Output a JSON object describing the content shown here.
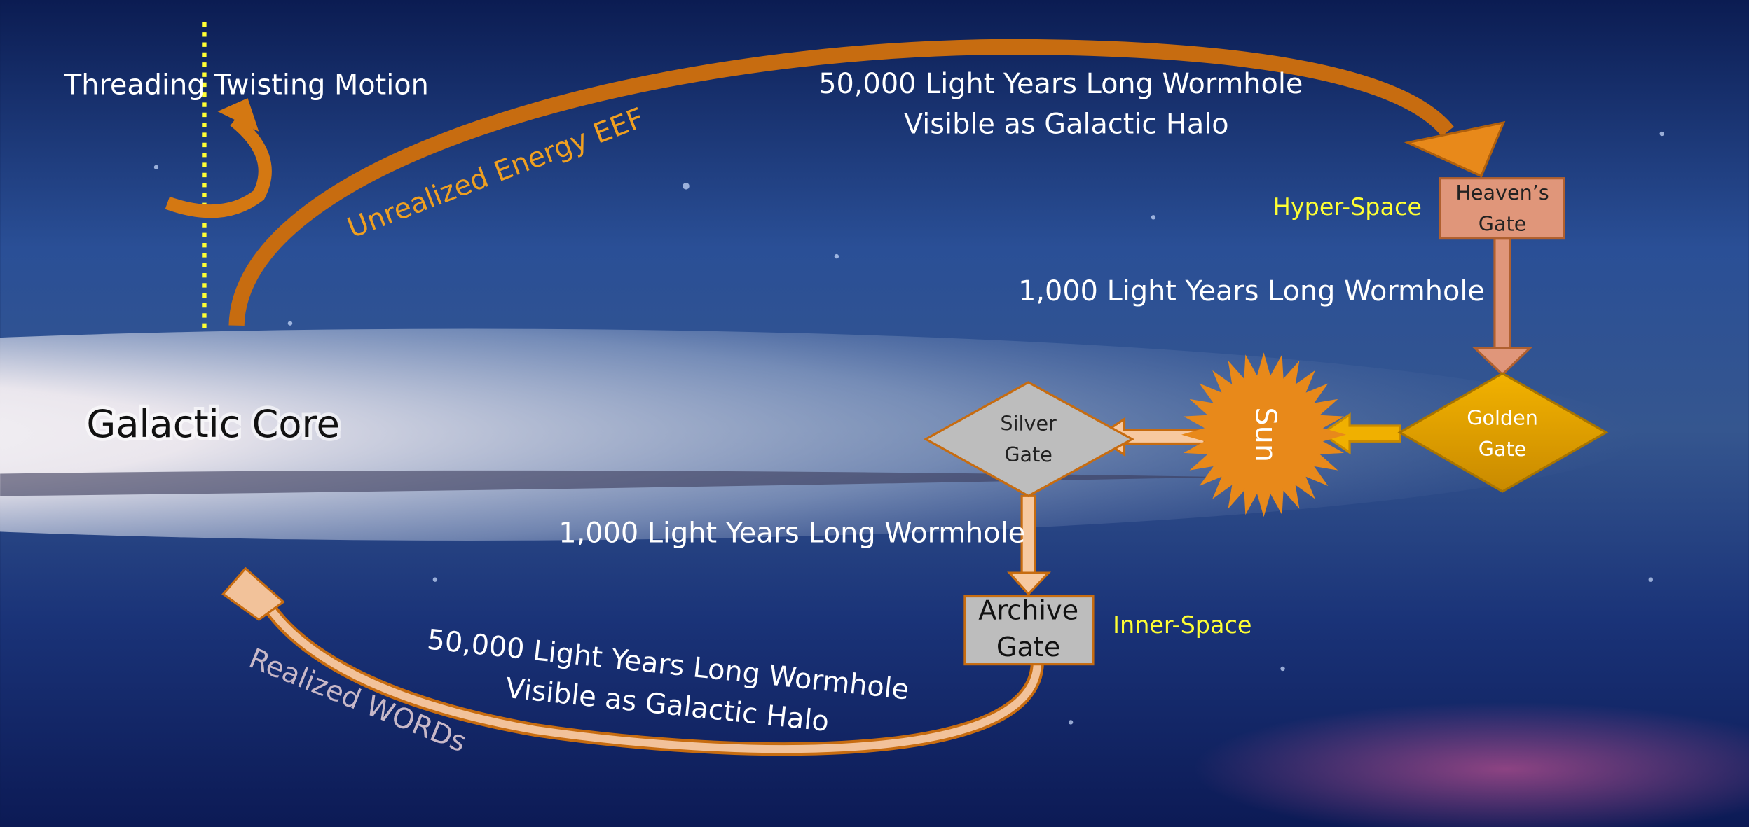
{
  "annotations": {
    "motion": "Threading Twisting Motion",
    "unrealized": "Unrealized Energy EEF",
    "top_wormhole": [
      "50,000 Light Years Long Wormhole",
      "Visible as Galactic Halo"
    ],
    "upper_short_wormhole": "1,000 Light Years Long Wormhole",
    "lower_short_wormhole": "1,000 Light Years Long Wormhole",
    "bottom_wormhole": [
      "50,000 Light Years Long Wormhole",
      "Visible as Galactic Halo"
    ],
    "realized": "Realized WORDs",
    "core": "Galactic Core"
  },
  "nodes": [
    {
      "label": [
        "Heaven’s",
        "Gate"
      ],
      "region": "Hyper-Space"
    },
    {
      "label": [
        "Golden",
        "Gate"
      ]
    },
    {
      "label": [
        "Sun"
      ]
    },
    {
      "label": [
        "Silver",
        "Gate"
      ]
    },
    {
      "label": [
        "Archive",
        "Gate"
      ],
      "region": "Inner-Space"
    }
  ]
}
